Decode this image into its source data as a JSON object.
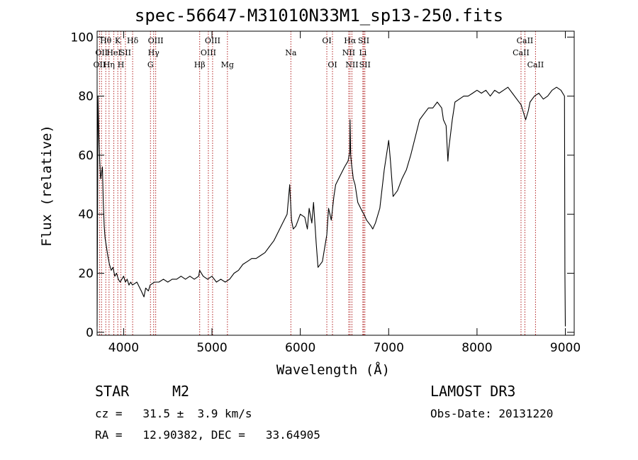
{
  "chart_data": {
    "type": "line",
    "title": "spec-56647-M31010N33M1_sp13-250.fits",
    "xlabel": "Wavelength (Å)",
    "ylabel": "Flux (relative)",
    "xlim": [
      3700,
      9100
    ],
    "ylim": [
      -1,
      102
    ],
    "xticks": [
      4000,
      5000,
      6000,
      7000,
      8000,
      9000
    ],
    "xtick_labels": [
      "4000",
      "5000",
      "6000",
      "7000",
      "8000",
      "9000"
    ],
    "yticks": [
      0,
      20,
      40,
      60,
      80,
      100
    ],
    "ytick_labels": [
      "0",
      "20",
      "40",
      "60",
      "80",
      "100"
    ],
    "series": [
      {
        "name": "flux",
        "x": [
          3700,
          3710,
          3720,
          3730,
          3740,
          3750,
          3760,
          3770,
          3780,
          3790,
          3800,
          3820,
          3840,
          3860,
          3880,
          3900,
          3920,
          3940,
          3960,
          3980,
          4000,
          4020,
          4040,
          4060,
          4080,
          4100,
          4150,
          4200,
          4230,
          4250,
          4280,
          4300,
          4350,
          4400,
          4450,
          4500,
          4550,
          4600,
          4650,
          4700,
          4750,
          4800,
          4850,
          4860,
          4900,
          4950,
          5000,
          5050,
          5100,
          5150,
          5200,
          5250,
          5300,
          5350,
          5400,
          5450,
          5500,
          5550,
          5600,
          5650,
          5700,
          5750,
          5800,
          5850,
          5880,
          5900,
          5920,
          5950,
          6000,
          6050,
          6080,
          6100,
          6130,
          6150,
          6180,
          6200,
          6250,
          6300,
          6320,
          6350,
          6380,
          6400,
          6450,
          6500,
          6540,
          6560,
          6563,
          6570,
          6580,
          6600,
          6620,
          6650,
          6700,
          6720,
          6750,
          6800,
          6820,
          6850,
          6900,
          6950,
          7000,
          7020,
          7050,
          7100,
          7150,
          7200,
          7250,
          7300,
          7350,
          7400,
          7450,
          7500,
          7550,
          7600,
          7620,
          7650,
          7670,
          7680,
          7700,
          7720,
          7750,
          7800,
          7850,
          7900,
          7950,
          8000,
          8050,
          8100,
          8150,
          8200,
          8250,
          8300,
          8350,
          8400,
          8450,
          8500,
          8530,
          8550,
          8580,
          8600,
          8650,
          8700,
          8750,
          8800,
          8850,
          8900,
          8950,
          8990,
          8995,
          9000
        ],
        "values": [
          2,
          80,
          66,
          58,
          52,
          54,
          56,
          44,
          36,
          32,
          30,
          26,
          23,
          21,
          22,
          19,
          20,
          18,
          17,
          18,
          19,
          17,
          18,
          16,
          17,
          16,
          17,
          14,
          12,
          15,
          14,
          16,
          17,
          17,
          18,
          17,
          18,
          18,
          19,
          18,
          19,
          18,
          19,
          21,
          19,
          18,
          19,
          17,
          18,
          17,
          18,
          20,
          21,
          23,
          24,
          25,
          25,
          26,
          27,
          29,
          31,
          34,
          37,
          40,
          50,
          38,
          35,
          36,
          40,
          39,
          35,
          42,
          37,
          44,
          30,
          22,
          24,
          33,
          42,
          38,
          46,
          50,
          53,
          56,
          58,
          61,
          72,
          60,
          57,
          52,
          50,
          44,
          41,
          40,
          38,
          36,
          35,
          37,
          42,
          55,
          65,
          58,
          46,
          48,
          52,
          55,
          60,
          66,
          72,
          74,
          76,
          76,
          78,
          76,
          72,
          70,
          58,
          62,
          67,
          72,
          78,
          79,
          80,
          80,
          81,
          82,
          81,
          82,
          80,
          82,
          81,
          82,
          83,
          81,
          79,
          77,
          74,
          72,
          75,
          78,
          80,
          81,
          79,
          80,
          82,
          83,
          82,
          80,
          20,
          2
        ]
      }
    ],
    "lines": [
      {
        "w": 3727,
        "label": "OII",
        "row": 2
      },
      {
        "w": 3750,
        "label": "OII",
        "row": 1
      },
      {
        "w": 3798,
        "label": "Hθ",
        "row": 0
      },
      {
        "w": 3835,
        "label": "Hη",
        "row": 2
      },
      {
        "w": 3889,
        "label": "HeI",
        "row": 1
      },
      {
        "w": 3934,
        "label": "K",
        "row": 0
      },
      {
        "w": 3969,
        "label": "H",
        "row": 2
      },
      {
        "w": 4020,
        "label": "SII",
        "row": 1
      },
      {
        "w": 4102,
        "label": "Hδ",
        "row": 0
      },
      {
        "w": 4304,
        "label": "G",
        "row": 2
      },
      {
        "w": 4340,
        "label": "Hγ",
        "row": 1
      },
      {
        "w": 4363,
        "label": "OIII",
        "row": 0
      },
      {
        "w": 4861,
        "label": "Hβ",
        "row": 2
      },
      {
        "w": 4959,
        "label": "OIII",
        "row": 1
      },
      {
        "w": 5007,
        "label": "OIII",
        "row": 0
      },
      {
        "w": 5175,
        "label": "Mg",
        "row": 2
      },
      {
        "w": 5893,
        "label": "Na",
        "row": 1
      },
      {
        "w": 6300,
        "label": "OI",
        "row": 0
      },
      {
        "w": 6364,
        "label": "OI",
        "row": 2
      },
      {
        "w": 6548,
        "label": "NII",
        "row": 1
      },
      {
        "w": 6563,
        "label": "Hα",
        "row": 0
      },
      {
        "w": 6584,
        "label": "NII",
        "row": 2
      },
      {
        "w": 6708,
        "label": "Li",
        "row": 1
      },
      {
        "w": 6717,
        "label": "SII",
        "row": 0
      },
      {
        "w": 6731,
        "label": "SII",
        "row": 2
      },
      {
        "w": 8498,
        "label": "CaII",
        "row": 1
      },
      {
        "w": 8542,
        "label": "CaII",
        "row": 0
      },
      {
        "w": 8662,
        "label": "CaII",
        "row": 2
      }
    ]
  },
  "info": {
    "class_label": "STAR",
    "subclass": "M2",
    "survey": "LAMOST DR3",
    "redshift": "cz =   31.5 ±  3.9 km/s",
    "obs_date": "Obs-Date: 20131220",
    "coords": "RA =   12.90382, DEC =   33.64905"
  }
}
